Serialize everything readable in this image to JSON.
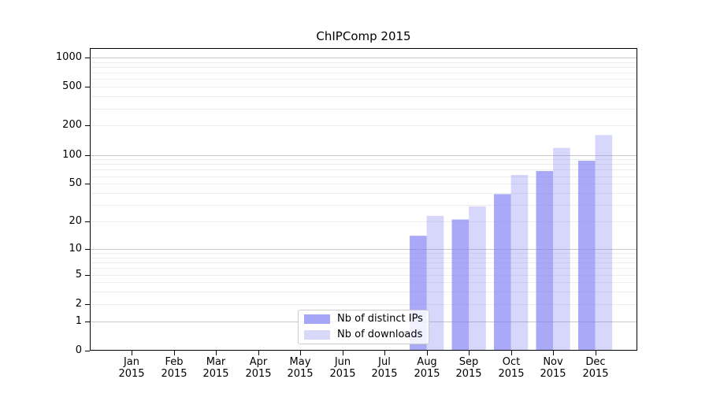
{
  "chart_data": {
    "type": "bar",
    "title": "ChIPComp 2015",
    "year": "2015",
    "months": [
      "Jan",
      "Feb",
      "Mar",
      "Apr",
      "May",
      "Jun",
      "Jul",
      "Aug",
      "Sep",
      "Oct",
      "Nov",
      "Dec"
    ],
    "series": [
      {
        "name": "Nb of distinct IPs",
        "swatch_color": "#a6a6f8",
        "bar_fill": "rgba(124,124,245,0.66)",
        "values": [
          0,
          0,
          0,
          0,
          0,
          0,
          0,
          14,
          21,
          39,
          68,
          87
        ]
      },
      {
        "name": "Nb of downloads",
        "swatch_color": "#d8d8f9",
        "bar_fill": "rgba(124,124,245,0.30)",
        "values": [
          0,
          0,
          0,
          0,
          0,
          0,
          0,
          23,
          29,
          62,
          118,
          160
        ]
      }
    ],
    "y_axis": {
      "scale": "log10(1+y)",
      "ticks": [
        0,
        1,
        2,
        5,
        10,
        20,
        50,
        100,
        200,
        500,
        1000
      ],
      "ylim": [
        0,
        1250
      ],
      "major_grid_values": [
        1,
        10,
        100,
        1000
      ]
    },
    "xlabel": "",
    "ylabel": "",
    "grid": "on",
    "legend_position": "inside lower-center",
    "colors": {
      "major_grid": "#c8c8c8",
      "minor_grid": "#ededed",
      "axis_frame": "#000000",
      "text": "#000000",
      "legend_border": "#cccccc",
      "background": "#ffffff"
    }
  }
}
